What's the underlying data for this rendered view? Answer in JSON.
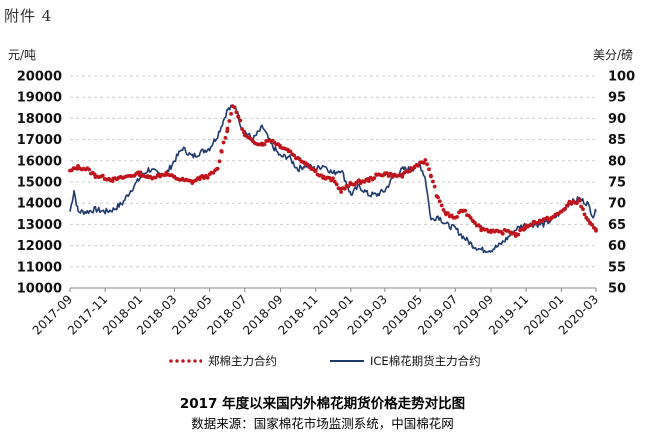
{
  "page": {
    "heading": "附件 4",
    "left_unit": "元/吨",
    "right_unit": "美分/磅",
    "caption_title": "2017 年度以来国内外棉花期货价格走势对比图",
    "caption_source": "数据来源：国家棉花市场监测系统，中国棉花网"
  },
  "chart_data": {
    "type": "line",
    "grid": "horizontal dashed",
    "legend_position": "bottom",
    "x_ticks": [
      "2017-09",
      "2017-11",
      "2018-01",
      "2018-03",
      "2018-05",
      "2018-07",
      "2018-09",
      "2018-11",
      "2019-01",
      "2019-03",
      "2019-05",
      "2019-07",
      "2019-09",
      "2019-11",
      "2020-01",
      "2020-03"
    ],
    "y_left": {
      "min": 10000,
      "max": 20000,
      "step": 1000,
      "ticks": [
        "10000",
        "11000",
        "12000",
        "13000",
        "14000",
        "15000",
        "16000",
        "17000",
        "18000",
        "19000",
        "20000"
      ]
    },
    "y_right": {
      "min": 50,
      "max": 100,
      "step": 5,
      "ticks": [
        "50",
        "55",
        "60",
        "65",
        "70",
        "75",
        "80",
        "85",
        "90",
        "95",
        "100"
      ]
    },
    "series": [
      {
        "name": "郑棉主力合约",
        "axis": "left",
        "style": "dotted",
        "color": "#c0141c",
        "points": [
          [
            "2017-09-01",
            15500
          ],
          [
            "2017-09-15",
            15700
          ],
          [
            "2017-10-01",
            15600
          ],
          [
            "2017-10-15",
            15300
          ],
          [
            "2017-11-01",
            15200
          ],
          [
            "2017-11-15",
            15100
          ],
          [
            "2017-12-01",
            15200
          ],
          [
            "2017-12-15",
            15300
          ],
          [
            "2018-01-01",
            15400
          ],
          [
            "2018-01-15",
            15200
          ],
          [
            "2018-02-01",
            15300
          ],
          [
            "2018-02-15",
            15400
          ],
          [
            "2018-03-01",
            15200
          ],
          [
            "2018-03-15",
            15100
          ],
          [
            "2018-04-01",
            15000
          ],
          [
            "2018-04-15",
            15200
          ],
          [
            "2018-05-01",
            15300
          ],
          [
            "2018-05-15",
            15600
          ],
          [
            "2018-05-22",
            16500
          ],
          [
            "2018-06-01",
            17500
          ],
          [
            "2018-06-10",
            18600
          ],
          [
            "2018-06-20",
            18100
          ],
          [
            "2018-07-01",
            17200
          ],
          [
            "2018-07-15",
            16900
          ],
          [
            "2018-08-01",
            16800
          ],
          [
            "2018-08-15",
            17000
          ],
          [
            "2018-09-01",
            16700
          ],
          [
            "2018-09-15",
            16500
          ],
          [
            "2018-10-01",
            16100
          ],
          [
            "2018-10-15",
            15900
          ],
          [
            "2018-11-01",
            15500
          ],
          [
            "2018-11-15",
            15200
          ],
          [
            "2018-12-01",
            15100
          ],
          [
            "2018-12-15",
            14600
          ],
          [
            "2019-01-01",
            14900
          ],
          [
            "2019-01-15",
            15000
          ],
          [
            "2019-02-01",
            15100
          ],
          [
            "2019-02-15",
            15300
          ],
          [
            "2019-03-01",
            15400
          ],
          [
            "2019-03-15",
            15300
          ],
          [
            "2019-04-01",
            15300
          ],
          [
            "2019-04-15",
            15600
          ],
          [
            "2019-05-01",
            15900
          ],
          [
            "2019-05-10",
            16000
          ],
          [
            "2019-05-20",
            15300
          ],
          [
            "2019-06-01",
            14200
          ],
          [
            "2019-06-15",
            13500
          ],
          [
            "2019-07-01",
            13300
          ],
          [
            "2019-07-15",
            13700
          ],
          [
            "2019-08-01",
            13200
          ],
          [
            "2019-08-15",
            12800
          ],
          [
            "2019-09-01",
            12700
          ],
          [
            "2019-09-15",
            12600
          ],
          [
            "2019-10-01",
            12700
          ],
          [
            "2019-10-15",
            12500
          ],
          [
            "2019-11-01",
            12900
          ],
          [
            "2019-11-15",
            13100
          ],
          [
            "2019-12-01",
            13200
          ],
          [
            "2019-12-15",
            13300
          ],
          [
            "2020-01-01",
            13600
          ],
          [
            "2020-01-15",
            14000
          ],
          [
            "2020-02-01",
            14100
          ],
          [
            "2020-02-10",
            13500
          ],
          [
            "2020-02-20",
            13000
          ],
          [
            "2020-03-01",
            12700
          ]
        ]
      },
      {
        "name": "ICE棉花期货主力合约",
        "axis": "right",
        "style": "solid",
        "color": "#1f3a6b",
        "points": [
          [
            "2017-09-01",
            68
          ],
          [
            "2017-09-08",
            73
          ],
          [
            "2017-09-15",
            68
          ],
          [
            "2017-10-01",
            68
          ],
          [
            "2017-10-15",
            68.5
          ],
          [
            "2017-11-01",
            68
          ],
          [
            "2017-11-15",
            68.5
          ],
          [
            "2017-12-01",
            70
          ],
          [
            "2017-12-15",
            73
          ],
          [
            "2018-01-01",
            76
          ],
          [
            "2018-01-15",
            78
          ],
          [
            "2018-02-01",
            77
          ],
          [
            "2018-02-15",
            77
          ],
          [
            "2018-03-01",
            80
          ],
          [
            "2018-03-15",
            83
          ],
          [
            "2018-04-01",
            81
          ],
          [
            "2018-04-15",
            82
          ],
          [
            "2018-05-01",
            83
          ],
          [
            "2018-05-15",
            86
          ],
          [
            "2018-06-01",
            92
          ],
          [
            "2018-06-15",
            93
          ],
          [
            "2018-06-25",
            88
          ],
          [
            "2018-07-01",
            87
          ],
          [
            "2018-07-15",
            85
          ],
          [
            "2018-08-01",
            88
          ],
          [
            "2018-08-15",
            84
          ],
          [
            "2018-09-01",
            81
          ],
          [
            "2018-09-15",
            81
          ],
          [
            "2018-10-01",
            78
          ],
          [
            "2018-10-15",
            79
          ],
          [
            "2018-11-01",
            78
          ],
          [
            "2018-11-15",
            79
          ],
          [
            "2018-12-01",
            77
          ],
          [
            "2018-12-15",
            78
          ],
          [
            "2019-01-01",
            72
          ],
          [
            "2019-01-15",
            74
          ],
          [
            "2019-02-01",
            72
          ],
          [
            "2019-02-15",
            72
          ],
          [
            "2019-03-01",
            73
          ],
          [
            "2019-03-15",
            76
          ],
          [
            "2019-04-01",
            78
          ],
          [
            "2019-04-15",
            78
          ],
          [
            "2019-05-01",
            79
          ],
          [
            "2019-05-10",
            76
          ],
          [
            "2019-05-20",
            66
          ],
          [
            "2019-06-01",
            67
          ],
          [
            "2019-06-15",
            65
          ],
          [
            "2019-07-01",
            64
          ],
          [
            "2019-07-15",
            62
          ],
          [
            "2019-08-01",
            60
          ],
          [
            "2019-08-15",
            59
          ],
          [
            "2019-09-01",
            59
          ],
          [
            "2019-09-15",
            60
          ],
          [
            "2019-10-01",
            62
          ],
          [
            "2019-10-15",
            64
          ],
          [
            "2019-11-01",
            65
          ],
          [
            "2019-11-15",
            65
          ],
          [
            "2019-12-01",
            65
          ],
          [
            "2019-12-15",
            66
          ],
          [
            "2020-01-01",
            68
          ],
          [
            "2020-01-15",
            70
          ],
          [
            "2020-02-01",
            71
          ],
          [
            "2020-02-15",
            70
          ],
          [
            "2020-02-25",
            67
          ],
          [
            "2020-03-01",
            68
          ]
        ]
      }
    ]
  }
}
